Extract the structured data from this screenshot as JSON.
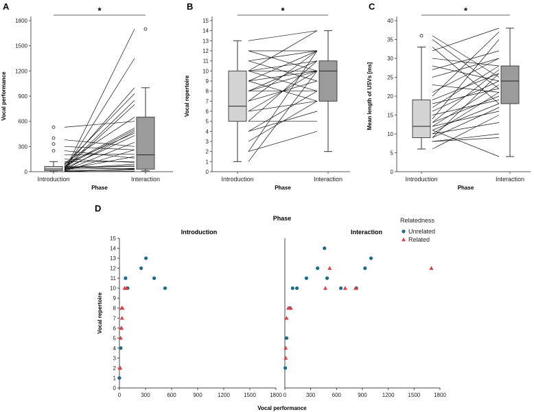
{
  "chart_data": [
    {
      "panel": "A",
      "type": "box-with-lines",
      "xlabel": "Phase",
      "ylabel": "Vocal performance",
      "ylim": [
        0,
        1800
      ],
      "yticks": [
        0,
        300,
        600,
        900,
        1200,
        1500,
        1800
      ],
      "categories": [
        "Introduction",
        "Interaction"
      ],
      "significance": "*",
      "boxes": [
        {
          "min": 2,
          "q1": 12,
          "median": 32,
          "q3": 62,
          "max": 120,
          "outliers": [
            250,
            330,
            400,
            530
          ]
        },
        {
          "min": 10,
          "q1": 30,
          "median": 200,
          "q3": 650,
          "max": 1000,
          "outliers": [
            1700
          ]
        }
      ],
      "pairs": [
        [
          0,
          5
        ],
        [
          0,
          30
        ],
        [
          10,
          1700
        ],
        [
          20,
          1350
        ],
        [
          50,
          1000
        ],
        [
          80,
          930
        ],
        [
          40,
          850
        ],
        [
          30,
          800
        ],
        [
          100,
          650
        ],
        [
          60,
          500
        ],
        [
          530,
          600
        ],
        [
          380,
          300
        ],
        [
          300,
          260
        ],
        [
          250,
          160
        ],
        [
          200,
          210
        ],
        [
          150,
          110
        ],
        [
          120,
          120
        ],
        [
          60,
          60
        ],
        [
          30,
          40
        ],
        [
          10,
          20
        ],
        [
          5,
          30
        ],
        [
          45,
          70
        ],
        [
          70,
          520
        ],
        [
          20,
          480
        ],
        [
          90,
          460
        ],
        [
          15,
          350
        ],
        [
          25,
          180
        ],
        [
          35,
          90
        ],
        [
          55,
          35
        ],
        [
          40,
          430
        ],
        [
          8,
          260
        ]
      ]
    },
    {
      "panel": "B",
      "type": "box-with-lines",
      "xlabel": "Phase",
      "ylabel": "Vocal repertoire",
      "ylim": [
        0,
        15
      ],
      "yticks": [
        0,
        1,
        2,
        3,
        4,
        5,
        6,
        7,
        8,
        9,
        10,
        11,
        12,
        13,
        14,
        15
      ],
      "categories": [
        "Introduction",
        "Interaction"
      ],
      "significance": "*",
      "boxes": [
        {
          "min": 1,
          "q1": 5,
          "median": 6.5,
          "q3": 10,
          "max": 13,
          "outliers": []
        },
        {
          "min": 2,
          "q1": 7,
          "median": 10,
          "q3": 11,
          "max": 14,
          "outliers": []
        }
      ],
      "pairs": [
        [
          13,
          14
        ],
        [
          12,
          12
        ],
        [
          12,
          10
        ],
        [
          11,
          12
        ],
        [
          11,
          9
        ],
        [
          10,
          14
        ],
        [
          10,
          11
        ],
        [
          10,
          10
        ],
        [
          10,
          8
        ],
        [
          9,
          12
        ],
        [
          9,
          10
        ],
        [
          9,
          7
        ],
        [
          8,
          11
        ],
        [
          8,
          8
        ],
        [
          8,
          10
        ],
        [
          7,
          12
        ],
        [
          7,
          9
        ],
        [
          6,
          10
        ],
        [
          6,
          7
        ],
        [
          5,
          11
        ],
        [
          5,
          5
        ],
        [
          4,
          8
        ],
        [
          4,
          6
        ],
        [
          3,
          7
        ],
        [
          2,
          12
        ],
        [
          2,
          4
        ],
        [
          1,
          10
        ]
      ]
    },
    {
      "panel": "C",
      "type": "box-with-lines",
      "xlabel": "Phase",
      "ylabel": "Mean length of USVs [ms]",
      "ylim": [
        0,
        40
      ],
      "yticks": [
        0,
        5,
        10,
        15,
        20,
        25,
        30,
        35,
        40
      ],
      "categories": [
        "Introduction",
        "Interaction"
      ],
      "significance": "*",
      "boxes": [
        {
          "min": 6,
          "q1": 9,
          "median": 12,
          "q3": 19,
          "max": 33,
          "outliers": [
            36
          ]
        },
        {
          "min": 4,
          "q1": 18,
          "median": 24,
          "q3": 28,
          "max": 38,
          "outliers": []
        }
      ],
      "pairs": [
        [
          36,
          25
        ],
        [
          35,
          22
        ],
        [
          33,
          18
        ],
        [
          32,
          38
        ],
        [
          30,
          28
        ],
        [
          28,
          24
        ],
        [
          27,
          32
        ],
        [
          25,
          30
        ],
        [
          23,
          21
        ],
        [
          21,
          30
        ],
        [
          20,
          37
        ],
        [
          19,
          26
        ],
        [
          18,
          22
        ],
        [
          17,
          28
        ],
        [
          16,
          24
        ],
        [
          15,
          19
        ],
        [
          14,
          35
        ],
        [
          13,
          20
        ],
        [
          13,
          27
        ],
        [
          12,
          16
        ],
        [
          12,
          23
        ],
        [
          11,
          18
        ],
        [
          11,
          4
        ],
        [
          10,
          21
        ],
        [
          10,
          13
        ],
        [
          9,
          17
        ],
        [
          9,
          26
        ],
        [
          8,
          10
        ],
        [
          8,
          9
        ],
        [
          6,
          15
        ]
      ]
    },
    {
      "panel": "D",
      "type": "scatter",
      "title": "Phase",
      "xlabel": "Vocal performance",
      "ylabel": "Vocal repertoire",
      "xlim": [
        0,
        1800
      ],
      "xticks": [
        0,
        300,
        600,
        900,
        1200,
        1500,
        1800
      ],
      "ylim": [
        0,
        15
      ],
      "yticks": [
        0,
        1,
        2,
        3,
        4,
        5,
        6,
        7,
        8,
        9,
        10,
        11,
        12,
        13,
        14,
        15
      ],
      "legend_title": "Relatedness",
      "facets": [
        {
          "name": "Introduction",
          "series": [
            {
              "name": "Unrelated",
              "color": "#1f6a86",
              "marker": "circle",
              "points": [
                [
                  0,
                  1
                ],
                [
                  15,
                  4
                ],
                [
                  70,
                  11
                ],
                [
                  95,
                  10
                ],
                [
                  250,
                  12
                ],
                [
                  305,
                  13
                ],
                [
                  400,
                  11
                ],
                [
                  525,
                  10
                ]
              ]
            },
            {
              "name": "Related",
              "color": "#d9434b",
              "marker": "triangle",
              "points": [
                [
                  5,
                  2
                ],
                [
                  10,
                  2
                ],
                [
                  15,
                  5
                ],
                [
                  20,
                  6
                ],
                [
                  25,
                  6
                ],
                [
                  30,
                  7
                ],
                [
                  25,
                  8
                ],
                [
                  35,
                  8
                ],
                [
                  60,
                  10
                ],
                [
                  80,
                  10
                ]
              ]
            }
          ]
        },
        {
          "name": "Interaction",
          "series": [
            {
              "name": "Unrelated",
              "color": "#1f6a86",
              "marker": "circle",
              "points": [
                [
                  5,
                  2
                ],
                [
                  20,
                  5
                ],
                [
                  60,
                  8
                ],
                [
                  90,
                  10
                ],
                [
                  140,
                  10
                ],
                [
                  250,
                  11
                ],
                [
                  380,
                  12
                ],
                [
                  460,
                  14
                ],
                [
                  490,
                  11
                ],
                [
                  650,
                  10
                ],
                [
                  830,
                  10
                ],
                [
                  930,
                  12
                ],
                [
                  1000,
                  13
                ]
              ]
            },
            {
              "name": "Related",
              "color": "#d9434b",
              "marker": "triangle",
              "points": [
                [
                  10,
                  3
                ],
                [
                  10,
                  4
                ],
                [
                  20,
                  7
                ],
                [
                  40,
                  8
                ],
                [
                  70,
                  8
                ],
                [
                  470,
                  10
                ],
                [
                  520,
                  12
                ],
                [
                  700,
                  10
                ],
                [
                  820,
                  10
                ],
                [
                  1700,
                  12
                ]
              ]
            }
          ]
        }
      ]
    }
  ]
}
